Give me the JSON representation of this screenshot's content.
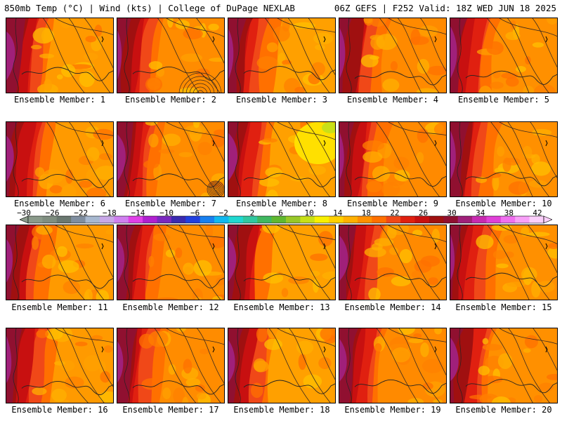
{
  "header": {
    "left": "850mb Temp (°C) | Wind (kts) | College of DuPage NEXLAB",
    "right": "06Z GEFS | F252 Valid: 18Z WED JUN 18 2025"
  },
  "panels": [
    {
      "label": "Ensemble Member: 1"
    },
    {
      "label": "Ensemble Member: 2"
    },
    {
      "label": "Ensemble Member: 3"
    },
    {
      "label": "Ensemble Member: 4"
    },
    {
      "label": "Ensemble Member: 5"
    },
    {
      "label": "Ensemble Member: 6"
    },
    {
      "label": "Ensemble Member: 7"
    },
    {
      "label": "Ensemble Member: 8"
    },
    {
      "label": "Ensemble Member: 9"
    },
    {
      "label": "Ensemble Member: 10"
    },
    {
      "label": "Ensemble Member: 11"
    },
    {
      "label": "Ensemble Member: 12"
    },
    {
      "label": "Ensemble Member: 13"
    },
    {
      "label": "Ensemble Member: 14"
    },
    {
      "label": "Ensemble Member: 15"
    },
    {
      "label": "Ensemble Member: 16"
    },
    {
      "label": "Ensemble Member: 17"
    },
    {
      "label": "Ensemble Member: 18"
    },
    {
      "label": "Ensemble Member: 19"
    },
    {
      "label": "Ensemble Member: 20"
    }
  ],
  "colorbar": {
    "labels": [
      "−30",
      "−26",
      "−22",
      "−18",
      "−14",
      "−10",
      "−6",
      "−2",
      "2",
      "6",
      "10",
      "14",
      "18",
      "22",
      "26",
      "30",
      "34",
      "38",
      "42"
    ],
    "colors": [
      "#8a9a8a",
      "#7f8e80",
      "#6a7870",
      "#7f8ea0",
      "#a7b8d0",
      "#c8a8e8",
      "#d080f0",
      "#e040e8",
      "#b020d0",
      "#7a28c0",
      "#3a2ab0",
      "#2040e0",
      "#1880f0",
      "#10b8f0",
      "#20d8d0",
      "#30c8a0",
      "#40b860",
      "#60b830",
      "#98c828",
      "#c8e018",
      "#f8f000",
      "#ffd000",
      "#ffb000",
      "#ff9000",
      "#ff7000",
      "#f04818",
      "#e02010",
      "#c81010",
      "#a01010",
      "#901030",
      "#a0207a",
      "#c82ab0",
      "#e040d8",
      "#f070f0",
      "#f8a0f8",
      "#fcd0fc"
    ]
  }
}
